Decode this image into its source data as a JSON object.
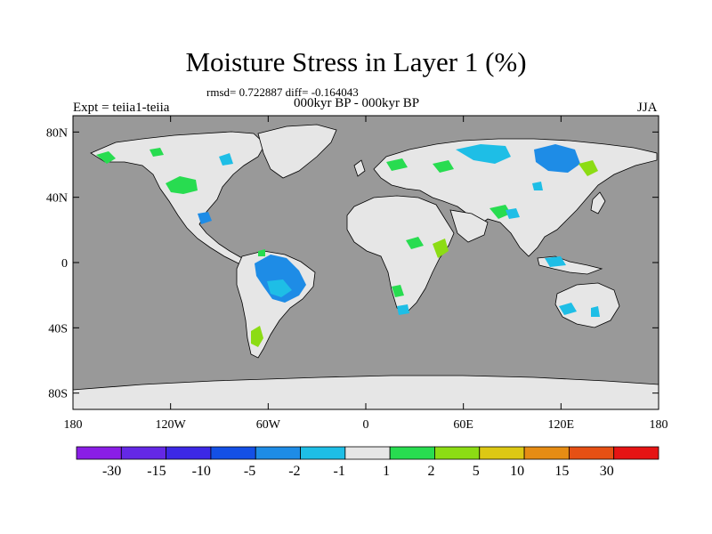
{
  "title": "Moisture Stress in Layer 1 (%)",
  "stats": "rmsd= 0.722887 diff= -0.164043",
  "period": "000kyr BP - 000kyr BP",
  "experiment": "Expt = teiia1-teiia",
  "season": "JJA",
  "map": {
    "projection": "cylindrical-equidistant",
    "lon_range": [
      -180,
      180
    ],
    "lat_range": [
      -90,
      90
    ],
    "ocean_color": "#999999",
    "neutral_land_color": "#e6e6e6",
    "lat_ticks": [
      {
        "value": 80,
        "label": "80N"
      },
      {
        "value": 40,
        "label": "40N"
      },
      {
        "value": 0,
        "label": "0"
      },
      {
        "value": -40,
        "label": "40S"
      },
      {
        "value": -80,
        "label": "80S"
      }
    ],
    "lon_ticks": [
      {
        "value": -180,
        "label": "180"
      },
      {
        "value": -120,
        "label": "120W"
      },
      {
        "value": -60,
        "label": "60W"
      },
      {
        "value": 0,
        "label": "0"
      },
      {
        "value": 60,
        "label": "60E"
      },
      {
        "value": 120,
        "label": "120E"
      },
      {
        "value": 180,
        "label": "180"
      }
    ]
  },
  "colorbar": {
    "colors": [
      "#8a1ee6",
      "#6428e6",
      "#3c28e6",
      "#1450e6",
      "#1e8ce6",
      "#1ebee6",
      "#e6e6e6",
      "#28dc50",
      "#8cdc14",
      "#dcc814",
      "#e68c14",
      "#e65014",
      "#e61414"
    ],
    "labels": [
      "-30",
      "-15",
      "-10",
      "-5",
      "-2",
      "-1",
      "1",
      "2",
      "5",
      "10",
      "15",
      "30"
    ]
  }
}
